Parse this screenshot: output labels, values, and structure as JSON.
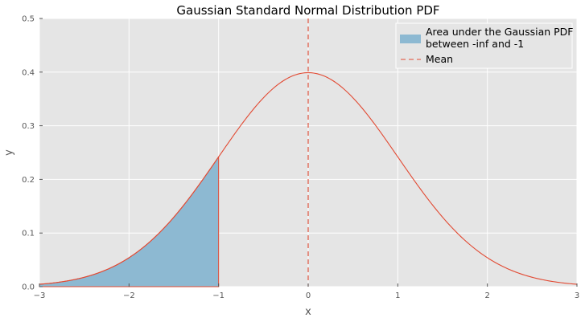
{
  "chart_data": {
    "type": "area",
    "title": "Gaussian Standard Normal Distribution PDF",
    "xlabel": "x",
    "ylabel": "y",
    "xlim": [
      -3,
      3
    ],
    "ylim": [
      0,
      0.5
    ],
    "xticks": [
      -3,
      -2,
      -1,
      0,
      1,
      2,
      3
    ],
    "xtick_labels": [
      "−3",
      "−2",
      "−1",
      "0",
      "1",
      "2",
      "3"
    ],
    "yticks": [
      0.0,
      0.1,
      0.2,
      0.3,
      0.4,
      0.5
    ],
    "ytick_labels": [
      "0.0",
      "0.1",
      "0.2",
      "0.3",
      "0.4",
      "0.5"
    ],
    "grid": true,
    "legend_position": "top-right",
    "series": [
      {
        "type": "line",
        "color": "#e24a33",
        "x": [
          -3.0,
          -2.75,
          -2.5,
          -2.25,
          -2.0,
          -1.75,
          -1.5,
          -1.25,
          -1.0,
          -0.75,
          -0.5,
          -0.25,
          0.0,
          0.25,
          0.5,
          0.75,
          1.0,
          1.25,
          1.5,
          1.75,
          2.0,
          2.25,
          2.5,
          2.75,
          3.0
        ],
        "y": [
          0.0044,
          0.0091,
          0.0175,
          0.0317,
          0.054,
          0.0863,
          0.1295,
          0.1826,
          0.242,
          0.3011,
          0.3521,
          0.3867,
          0.3989,
          0.3867,
          0.3521,
          0.3011,
          0.242,
          0.1826,
          0.1295,
          0.0863,
          0.054,
          0.0317,
          0.0175,
          0.0091,
          0.0044
        ]
      },
      {
        "type": "area",
        "name": "Area under the Gaussian PDF between -inf and -1",
        "legend_lines": [
          "Area under the Gaussian PDF",
          "between -inf and -1"
        ],
        "color": "#8db9d2",
        "x": [
          -3.0,
          -2.75,
          -2.5,
          -2.25,
          -2.0,
          -1.75,
          -1.5,
          -1.25,
          -1.0
        ],
        "y": [
          0.0044,
          0.0091,
          0.0175,
          0.0317,
          0.054,
          0.0863,
          0.1295,
          0.1826,
          0.242
        ]
      },
      {
        "type": "vline",
        "name": "Mean",
        "x": 0,
        "color": "#e24a33",
        "style": "dashed"
      }
    ]
  },
  "colors": {
    "plot_background": "#e5e5e5",
    "grid": "#ffffff",
    "legend_background": "#e5e5e5",
    "legend_border": "#ffffff"
  }
}
